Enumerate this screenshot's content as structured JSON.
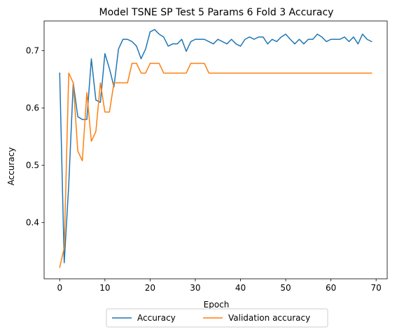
{
  "chart_data": {
    "type": "line",
    "title": "Model TSNE SP Test 5 Params 6 Fold 3 Accuracy",
    "xlabel": "Epoch",
    "ylabel": "Accuracy",
    "xlim": [
      -3.45,
      72.45
    ],
    "ylim": [
      0.302,
      0.752
    ],
    "xticks": [
      0,
      10,
      20,
      30,
      40,
      50,
      60,
      70
    ],
    "yticks": [
      0.4,
      0.5,
      0.6,
      0.7
    ],
    "xtick_labels": [
      "0",
      "10",
      "20",
      "30",
      "40",
      "50",
      "60",
      "70"
    ],
    "ytick_labels": [
      "0.4",
      "0.5",
      "0.6",
      "0.7"
    ],
    "grid": false,
    "legend_position": "bottom-center, outside plot",
    "x": [
      0,
      1,
      2,
      3,
      4,
      5,
      6,
      7,
      8,
      9,
      10,
      11,
      12,
      13,
      14,
      15,
      16,
      17,
      18,
      19,
      20,
      21,
      22,
      23,
      24,
      25,
      26,
      27,
      28,
      29,
      30,
      31,
      32,
      33,
      34,
      35,
      36,
      37,
      38,
      39,
      40,
      41,
      42,
      43,
      44,
      45,
      46,
      47,
      48,
      49,
      50,
      51,
      52,
      53,
      54,
      55,
      56,
      57,
      58,
      59,
      60,
      61,
      62,
      63,
      64,
      65,
      66,
      67,
      68,
      69
    ],
    "series": [
      {
        "name": "Accuracy",
        "color": "#1f77b4",
        "values": [
          0.661,
          0.33,
          0.466,
          0.644,
          0.585,
          0.58,
          0.58,
          0.686,
          0.614,
          0.61,
          0.695,
          0.669,
          0.637,
          0.703,
          0.72,
          0.72,
          0.716,
          0.708,
          0.686,
          0.703,
          0.733,
          0.737,
          0.729,
          0.724,
          0.708,
          0.712,
          0.712,
          0.72,
          0.699,
          0.716,
          0.72,
          0.72,
          0.72,
          0.716,
          0.712,
          0.72,
          0.716,
          0.712,
          0.72,
          0.712,
          0.708,
          0.72,
          0.724,
          0.72,
          0.724,
          0.724,
          0.712,
          0.72,
          0.716,
          0.724,
          0.729,
          0.72,
          0.712,
          0.72,
          0.712,
          0.72,
          0.72,
          0.729,
          0.724,
          0.716,
          0.72,
          0.72,
          0.72,
          0.724,
          0.716,
          0.724,
          0.712,
          0.729,
          0.72,
          0.716
        ]
      },
      {
        "name": "Validation accuracy",
        "color": "#ff7f0e",
        "values": [
          0.322,
          0.356,
          0.661,
          0.644,
          0.525,
          0.508,
          0.627,
          0.542,
          0.559,
          0.644,
          0.593,
          0.593,
          0.644,
          0.644,
          0.644,
          0.644,
          0.678,
          0.678,
          0.661,
          0.661,
          0.678,
          0.678,
          0.678,
          0.661,
          0.661,
          0.661,
          0.661,
          0.661,
          0.661,
          0.678,
          0.678,
          0.678,
          0.678,
          0.661,
          0.661,
          0.661,
          0.661,
          0.661,
          0.661,
          0.661,
          0.661,
          0.661,
          0.661,
          0.661,
          0.661,
          0.661,
          0.661,
          0.661,
          0.661,
          0.661,
          0.661,
          0.661,
          0.661,
          0.661,
          0.661,
          0.661,
          0.661,
          0.661,
          0.661,
          0.661,
          0.661,
          0.661,
          0.661,
          0.661,
          0.661,
          0.661,
          0.661,
          0.661,
          0.661,
          0.661
        ]
      }
    ]
  }
}
